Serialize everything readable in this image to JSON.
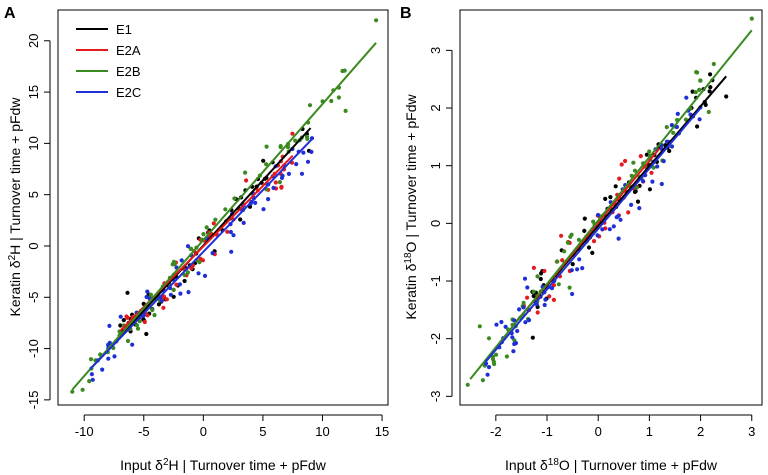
{
  "colors": {
    "E1": "#000000",
    "E2A": "#e41a1c",
    "E2B": "#3a8a1f",
    "E2C": "#1f2fd6"
  },
  "chart_data": [
    {
      "type": "scatter",
      "panel": "A",
      "xlabel": {
        "pre": "Input δ",
        "sup": "2",
        "post": "H | Turnover time + pFdw"
      },
      "ylabel": {
        "pre": "Keratin δ",
        "sup": "2",
        "post": "H | Turnover time + pFdw"
      },
      "xlim": [
        -12.2,
        15.5
      ],
      "ylim": [
        -15.5,
        23
      ],
      "xticks": [
        -10,
        -5,
        0,
        5,
        10,
        15
      ],
      "yticks": [
        -15,
        -10,
        -5,
        0,
        5,
        10,
        15,
        20
      ],
      "legend": {
        "position": "top-left",
        "entries": [
          "E1",
          "E2A",
          "E2B",
          "E2C"
        ]
      },
      "series": [
        {
          "name": "E1",
          "color_key": "E1",
          "line": {
            "x": [
              -7.5,
              9.0
            ],
            "y": [
              -9.5,
              11.5
            ]
          },
          "cluster": {
            "xmin": -7.5,
            "xmax": 9.0,
            "slope": 1.27,
            "intercept": 0.0,
            "spread": 1.8,
            "n": 60,
            "seed": 11
          }
        },
        {
          "name": "E2A",
          "color_key": "E2A",
          "line": {
            "x": [
              -7.0,
              7.5
            ],
            "y": [
              -8.3,
              8.8
            ]
          },
          "cluster": {
            "xmin": -7.0,
            "xmax": 7.5,
            "slope": 1.18,
            "intercept": 0.0,
            "spread": 1.7,
            "n": 55,
            "seed": 23
          }
        },
        {
          "name": "E2B",
          "color_key": "E2B",
          "line": {
            "x": [
              -11.0,
              14.5
            ],
            "y": [
              -14.0,
              19.8
            ]
          },
          "cluster": {
            "xmin": -11.0,
            "xmax": 12.0,
            "slope": 1.32,
            "intercept": 0.0,
            "spread": 2.0,
            "n": 75,
            "seed": 37
          },
          "extra_points": [
            {
              "x": 14.5,
              "y": 22.0
            },
            {
              "x": -11.0,
              "y": -14.2
            }
          ]
        },
        {
          "name": "E2C",
          "color_key": "E2C",
          "line": {
            "x": [
              -9.5,
              9.2
            ],
            "y": [
              -12.0,
              10.5
            ]
          },
          "cluster": {
            "xmin": -9.5,
            "xmax": 9.2,
            "slope": 1.2,
            "intercept": -0.6,
            "spread": 1.9,
            "n": 75,
            "seed": 53
          }
        }
      ]
    },
    {
      "type": "scatter",
      "panel": "B",
      "xlabel": {
        "pre": "Input δ",
        "sup": "18",
        "post": "O | Turnover time + pFdw"
      },
      "ylabel": {
        "pre": "Keratin δ",
        "sup": "18",
        "post": "O | Turnover time + pFdw"
      },
      "xlim": [
        -2.7,
        3.2
      ],
      "ylim": [
        -3.15,
        3.7
      ],
      "xticks": [
        -2,
        -1,
        0,
        1,
        2,
        3
      ],
      "yticks": [
        -3,
        -2,
        -1,
        0,
        1,
        2,
        3
      ],
      "legend": null,
      "series": [
        {
          "name": "E1",
          "color_key": "E1",
          "line": {
            "x": [
              -1.6,
              2.5
            ],
            "y": [
              -1.7,
              2.55
            ]
          },
          "cluster": {
            "xmin": -1.5,
            "xmax": 2.3,
            "slope": 1.05,
            "intercept": 0.0,
            "spread": 0.45,
            "n": 60,
            "seed": 71
          },
          "extra_points": [
            {
              "x": 2.5,
              "y": 2.2
            }
          ]
        },
        {
          "name": "E2A",
          "color_key": "E2A",
          "line": {
            "x": [
              -1.5,
              1.2
            ],
            "y": [
              -1.6,
              1.3
            ]
          },
          "cluster": {
            "xmin": -1.5,
            "xmax": 1.2,
            "slope": 1.05,
            "intercept": 0.0,
            "spread": 0.4,
            "n": 50,
            "seed": 83
          }
        },
        {
          "name": "E2B",
          "color_key": "E2B",
          "line": {
            "x": [
              -2.5,
              3.0
            ],
            "y": [
              -2.7,
              3.35
            ]
          },
          "cluster": {
            "xmin": -2.4,
            "xmax": 2.3,
            "slope": 1.1,
            "intercept": 0.0,
            "spread": 0.45,
            "n": 70,
            "seed": 97
          },
          "extra_points": [
            {
              "x": 3.0,
              "y": 3.55
            },
            {
              "x": -2.55,
              "y": -2.8
            }
          ]
        },
        {
          "name": "E2C",
          "color_key": "E2C",
          "line": {
            "x": [
              -2.2,
              2.0
            ],
            "y": [
              -2.4,
              2.0
            ]
          },
          "cluster": {
            "xmin": -2.2,
            "xmax": 2.0,
            "slope": 1.03,
            "intercept": -0.15,
            "spread": 0.42,
            "n": 75,
            "seed": 113
          }
        }
      ]
    }
  ]
}
